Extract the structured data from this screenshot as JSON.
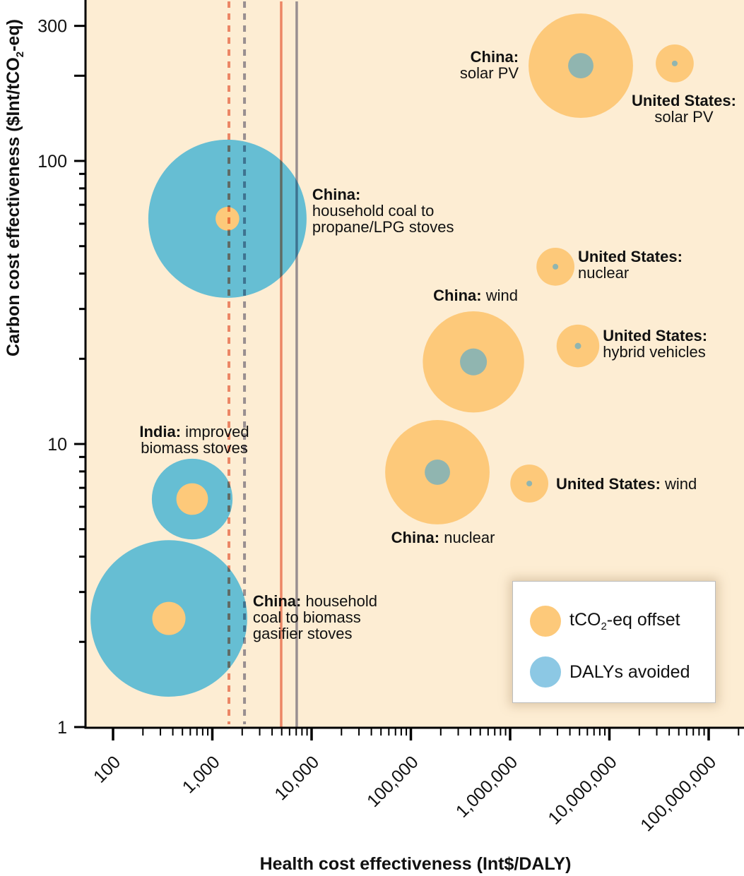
{
  "chart_data": {
    "type": "scatter",
    "subtype": "bubble",
    "title": "",
    "xlabel": "Health cost effectiveness (Int$/DALY)",
    "ylabel_parts": {
      "pre": "Carbon cost effectiveness ($Int/tCO",
      "sub": "2",
      "post": "-eq)"
    },
    "ylabel": "Carbon cost effectiveness ($Int/tCO2-eq)",
    "xscale": "log",
    "yscale": "log",
    "xlim": [
      70,
      150000000
    ],
    "ylim": [
      1,
      400
    ],
    "x_ticks": [
      {
        "value": 100,
        "label": "100"
      },
      {
        "value": 1000,
        "label": "1,000"
      },
      {
        "value": 10000,
        "label": "10,000"
      },
      {
        "value": 100000,
        "label": "100,000"
      },
      {
        "value": 1000000,
        "label": "1,000,000"
      },
      {
        "value": 10000000,
        "label": "10,000,000"
      },
      {
        "value": 100000000,
        "label": "100,000,000"
      }
    ],
    "y_ticks": [
      {
        "value": 1,
        "label": "1"
      },
      {
        "value": 10,
        "label": "10"
      },
      {
        "value": 100,
        "label": "100"
      },
      {
        "value": 300,
        "label": "300"
      }
    ],
    "y_minor_ticks": [
      2,
      3,
      4,
      5,
      6,
      7,
      8,
      9,
      20,
      30,
      40,
      50,
      60,
      70,
      80,
      90,
      200
    ],
    "grid": false,
    "colors": {
      "background": "#FDEDD3",
      "tco2": "#FDC97A",
      "daly": "#66BED3",
      "overlap": "#90B5B0",
      "legend_daly": "#8CC8E4",
      "line_salmon": "#EE907A",
      "line_gray": "#9A9AAE"
    },
    "reference_lines": [
      {
        "name": "threshold-dashed-salmon",
        "x": 1470,
        "style": "dashed",
        "color": "#EE907A"
      },
      {
        "name": "threshold-dashed-gray",
        "x": 2110,
        "style": "dashed",
        "color": "#9A9AAE"
      },
      {
        "name": "threshold-solid-salmon",
        "x": 4940,
        "style": "solid",
        "color": "#EE907A"
      },
      {
        "name": "threshold-solid-gray",
        "x": 7080,
        "style": "solid",
        "color": "#9A9AAE"
      }
    ],
    "series": [
      {
        "name": "tCO2-eq offset",
        "key": "tco2"
      },
      {
        "name": "DALYs avoided",
        "key": "daly"
      }
    ],
    "points": [
      {
        "id": "china-solar-pv",
        "country": "China:",
        "label": "solar PV",
        "label_layout": "left-two-line",
        "x": 5150000,
        "y": 217,
        "tco2_size": 0.66,
        "daly_size": 0.16,
        "outer": "tco2"
      },
      {
        "id": "us-solar-pv",
        "country": "United States:",
        "label": "solar PV",
        "label_layout": "below-two-line",
        "x": 45500000,
        "y": 221,
        "tco2_size": 0.24,
        "daly_size": 0.036,
        "outer": "tco2"
      },
      {
        "id": "china-lpg-stoves",
        "country": "China:",
        "label": [
          "household coal to",
          "propane/LPG stoves"
        ],
        "label_layout": "right-multi",
        "x": 1420,
        "y": 62.5,
        "tco2_size": 0.15,
        "daly_size": 1.0,
        "outer": "daly"
      },
      {
        "id": "us-nuclear",
        "country": "United States:",
        "label": "nuclear",
        "label_layout": "right-two-line",
        "x": 2860000,
        "y": 42.3,
        "tco2_size": 0.24,
        "daly_size": 0.036,
        "outer": "tco2"
      },
      {
        "id": "china-wind",
        "country": "China:",
        "label": "wind",
        "label_layout": "above-one-line",
        "x": 427000,
        "y": 19.5,
        "tco2_size": 0.64,
        "daly_size": 0.17,
        "outer": "tco2"
      },
      {
        "id": "us-hybrid-vehicles",
        "country": "United States:",
        "label": "hybrid vehicles",
        "label_layout": "right-two-line",
        "x": 4820000,
        "y": 22.2,
        "tco2_size": 0.27,
        "daly_size": 0.04,
        "outer": "tco2"
      },
      {
        "id": "china-nuclear",
        "country": "China:",
        "label": "nuclear",
        "label_layout": "below-one-line",
        "x": 185000,
        "y": 7.95,
        "tco2_size": 0.66,
        "daly_size": 0.16,
        "outer": "tco2"
      },
      {
        "id": "us-wind",
        "country": "United States:",
        "label": "wind",
        "label_layout": "right-one-line",
        "x": 1560000,
        "y": 7.25,
        "tco2_size": 0.24,
        "daly_size": 0.036,
        "outer": "tco2"
      },
      {
        "id": "india-biomass-stoves",
        "country": "India:",
        "label": [
          "improved",
          "biomass stoves"
        ],
        "label_layout": "above-two-line",
        "x": 627,
        "y": 6.39,
        "tco2_size": 0.2,
        "daly_size": 0.51,
        "outer": "daly"
      },
      {
        "id": "china-gasifier-stoves",
        "country": "China:",
        "label": [
          "household",
          "coal to biomass",
          "gasifier stoves"
        ],
        "label_layout": "right-inline-multi",
        "x": 365,
        "y": 2.42,
        "tco2_size": 0.21,
        "daly_size": 0.99,
        "outer": "daly"
      }
    ],
    "legend": {
      "placement": "bottom-right",
      "entries": [
        {
          "key": "tco2",
          "label_pre": "tCO",
          "label_sub": "2",
          "label_post": "-eq offset"
        },
        {
          "key": "daly",
          "label": "DALYs avoided"
        }
      ]
    }
  }
}
